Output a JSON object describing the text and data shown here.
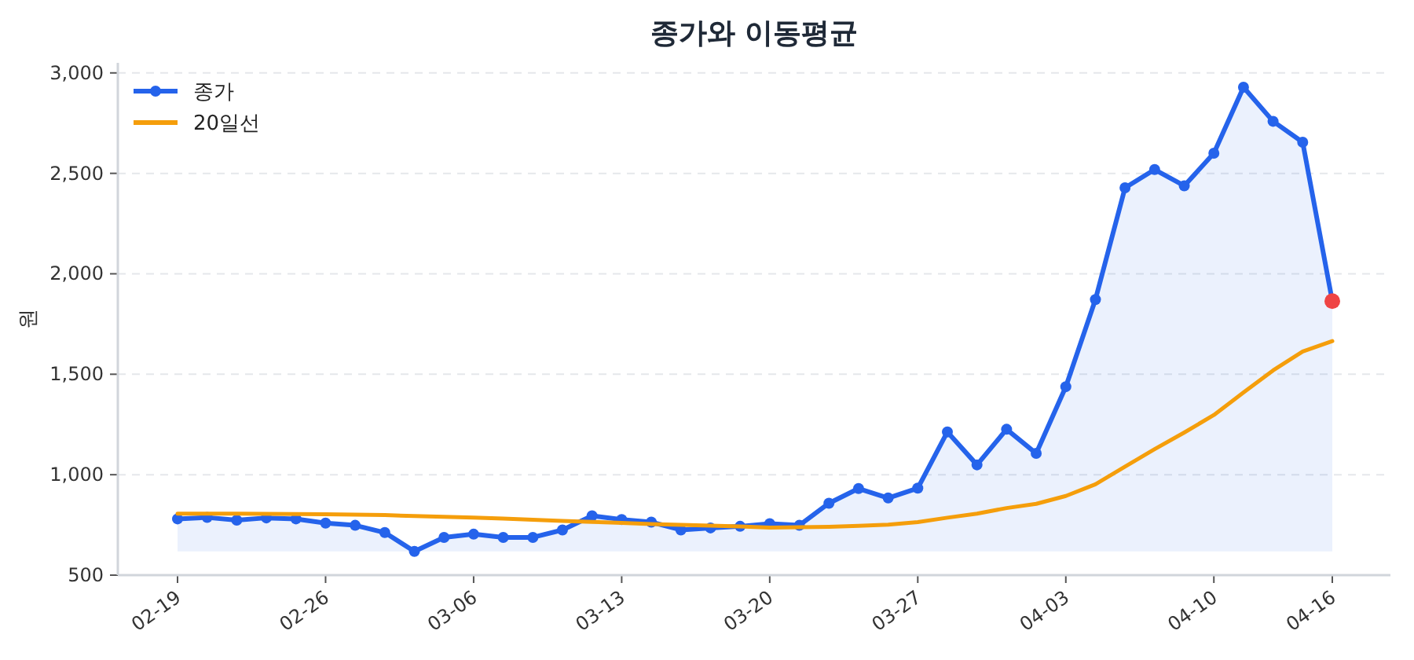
{
  "chart_data": {
    "type": "line",
    "title": "종가와 이동평균",
    "ylabel": "원",
    "categories": [
      "02-19",
      null,
      null,
      null,
      null,
      "02-26",
      null,
      null,
      null,
      null,
      "03-06",
      null,
      null,
      null,
      null,
      "03-13",
      null,
      null,
      null,
      null,
      "03-20",
      null,
      null,
      null,
      null,
      "03-27",
      null,
      null,
      null,
      null,
      "04-03",
      null,
      null,
      null,
      null,
      "04-10",
      null,
      null,
      null,
      "04-16"
    ],
    "series": [
      {
        "name": "종가",
        "type": "area",
        "color": "#2563eb",
        "marker": "circle",
        "values": [
          780,
          787,
          774,
          785,
          780,
          759,
          748,
          712,
          618,
          688,
          704,
          688,
          688,
          725,
          795,
          777,
          764,
          725,
          735,
          743,
          756,
          748,
          858,
          931,
          884,
          933,
          1213,
          1049,
          1226,
          1106,
          1438,
          1872,
          2428,
          2519,
          2438,
          2600,
          2929,
          2759,
          2655,
          1864
        ]
      },
      {
        "name": "20일선",
        "color": "#f59e0b",
        "marker": "none",
        "values": [
          806,
          806,
          806,
          805,
          804,
          803,
          801,
          799,
          794,
          790,
          786,
          782,
          776,
          770,
          765,
          760,
          754,
          750,
          746,
          742,
          737,
          739,
          741,
          745,
          751,
          764,
          786,
          806,
          834,
          855,
          894,
          952,
          1040,
          1127,
          1210,
          1297,
          1409,
          1519,
          1613,
          1665
        ]
      },
      {
        "type": "scatter",
        "color": "#ef4444",
        "marker": "circle",
        "x": [
          "04-16"
        ],
        "values": [
          1864
        ]
      }
    ],
    "ylim": [
      500,
      3050
    ],
    "yticks": [
      500,
      {
        "value": 1000,
        "label": "1,000"
      },
      {
        "value": 1500,
        "label": "1,500"
      },
      {
        "value": 2000,
        "label": "2,000"
      },
      {
        "value": 2500,
        "label": "2,500"
      },
      {
        "value": 3000,
        "label": "3,000"
      }
    ],
    "grid": "y",
    "legend": "top left",
    "line_style": "solid"
  }
}
